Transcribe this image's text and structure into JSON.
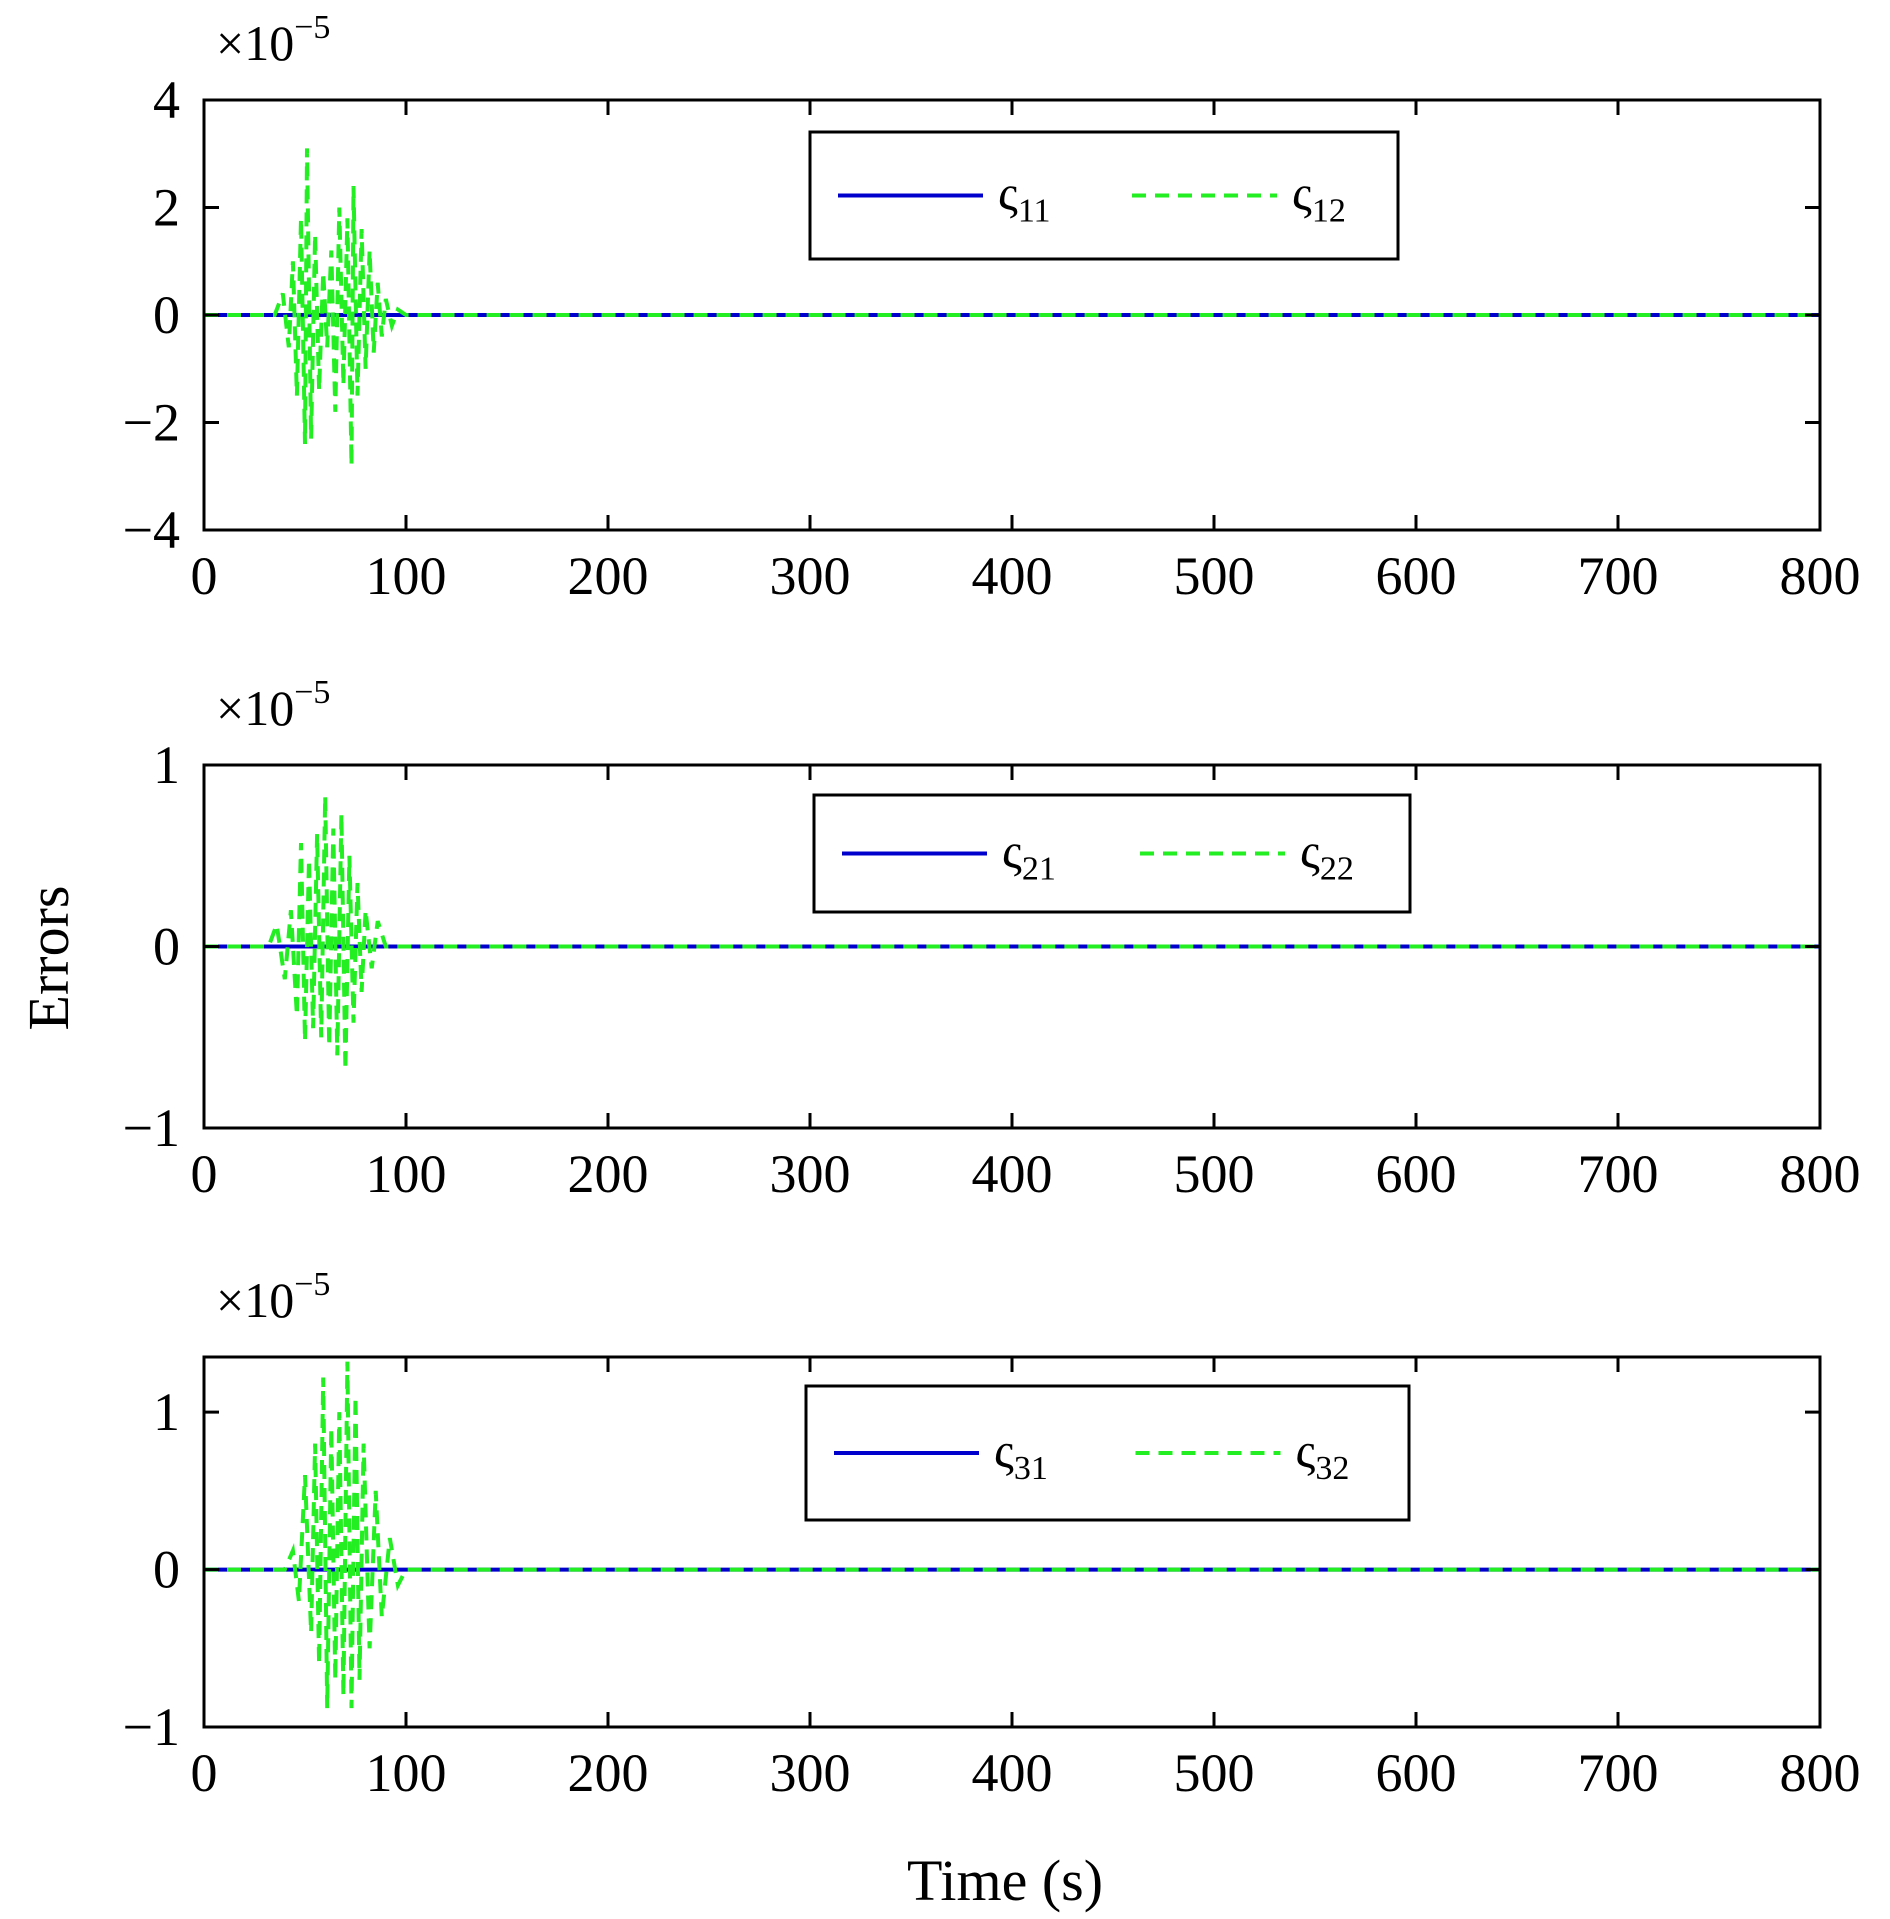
{
  "chart_data": {
    "type": "line",
    "shared": {
      "xlabel": "Time (s)",
      "ylabel": "Errors",
      "xlim": [
        0,
        800
      ],
      "xticks": [
        0,
        100,
        200,
        300,
        400,
        500,
        600,
        700,
        800
      ],
      "xtick_labels": [
        "0",
        "100",
        "200",
        "300",
        "400",
        "500",
        "600",
        "700",
        "800"
      ]
    },
    "panels": [
      {
        "multiplier_base": "×10",
        "multiplier_exp": "−5",
        "ylim": [
          -4,
          4
        ],
        "yticks": [
          -4,
          -2,
          0,
          2,
          4
        ],
        "ytick_labels": [
          "−4",
          "−2",
          "0",
          "2",
          "4"
        ],
        "legend_location": "top-center",
        "series": [
          {
            "name": "ς11",
            "symbol": "ς",
            "subscript": "11",
            "color": "#0000cc",
            "style": "solid",
            "amplitude": 0.6,
            "x": [
              0,
              35,
              43,
              50,
              55,
              60,
              65,
              70,
              75,
              80,
              85,
              92,
              100,
              800
            ],
            "y": [
              0,
              0,
              0,
              0,
              0,
              0,
              0,
              0,
              0,
              0,
              0,
              0,
              0,
              0
            ]
          },
          {
            "name": "ς12",
            "symbol": "ς",
            "subscript": "12",
            "color": "#22ee22",
            "style": "dashed",
            "x": [
              0,
              35,
              39,
              42,
              44,
              46,
              48,
              50,
              51,
              53,
              55,
              57,
              59,
              61,
              63,
              65,
              67,
              69,
              71,
              73,
              74,
              76,
              78,
              80,
              82,
              84,
              86,
              88,
              90,
              93,
              96,
              100,
              105,
              800
            ],
            "y": [
              0,
              0,
              0.4,
              -0.6,
              1.0,
              -1.5,
              1.8,
              -2.4,
              3.1,
              -2.3,
              1.5,
              -1.4,
              0.8,
              -0.6,
              1.2,
              -1.8,
              2.0,
              -1.3,
              1.8,
              -2.8,
              2.4,
              -1.5,
              1.6,
              -1.0,
              1.2,
              -0.7,
              0.6,
              -0.4,
              0.3,
              -0.2,
              0.1,
              0,
              0,
              0
            ]
          }
        ]
      },
      {
        "multiplier_base": "×10",
        "multiplier_exp": "−5",
        "ylim": [
          -1,
          1
        ],
        "yticks": [
          -1,
          0,
          1
        ],
        "ytick_labels": [
          "−1",
          "0",
          "1"
        ],
        "legend_location": "top-center",
        "series": [
          {
            "name": "ς21",
            "symbol": "ς",
            "subscript": "21",
            "color": "#0000cc",
            "style": "solid",
            "amplitude": 0.02,
            "x": [
              0,
              35,
              40,
              50,
              60,
              70,
              80,
              90,
              100,
              800
            ],
            "y": [
              0,
              0,
              0,
              0,
              0,
              0,
              0,
              0,
              0,
              0
            ]
          },
          {
            "name": "ς22",
            "symbol": "ς",
            "subscript": "22",
            "color": "#22ee22",
            "style": "dashed",
            "x": [
              0,
              32,
              36,
              40,
              43,
              46,
              48,
              50,
              52,
              54,
              56,
              58,
              60,
              62,
              64,
              66,
              68,
              70,
              72,
              74,
              76,
              78,
              80,
              83,
              86,
              90,
              800
            ],
            "y": [
              0,
              0,
              0.12,
              -0.18,
              0.2,
              -0.38,
              0.57,
              -0.52,
              0.48,
              -0.45,
              0.62,
              -0.5,
              0.83,
              -0.55,
              0.65,
              -0.6,
              0.73,
              -0.68,
              0.5,
              -0.42,
              0.35,
              -0.25,
              0.2,
              -0.12,
              0.14,
              0,
              0
            ]
          }
        ]
      },
      {
        "multiplier_base": "×10",
        "multiplier_exp": "−5",
        "ylim": [
          -1,
          1.35
        ],
        "yticks": [
          -1,
          0,
          1
        ],
        "ytick_labels": [
          "−1",
          "0",
          "1"
        ],
        "legend_location": "top-center",
        "series": [
          {
            "name": "ς31",
            "symbol": "ς",
            "subscript": "31",
            "color": "#0000cc",
            "style": "solid",
            "amplitude": 0.02,
            "x": [
              0,
              40,
              50,
              60,
              70,
              80,
              90,
              100,
              800
            ],
            "y": [
              0,
              0,
              0,
              0,
              0,
              0,
              0,
              0,
              0
            ]
          },
          {
            "name": "ς32",
            "symbol": "ς",
            "subscript": "32",
            "color": "#22ee22",
            "style": "dashed",
            "x": [
              0,
              40,
              44,
              47,
              50,
              53,
              55,
              57,
              59,
              61,
              63,
              65,
              67,
              69,
              71,
              73,
              75,
              77,
              79,
              82,
              85,
              88,
              92,
              96,
              100,
              800
            ],
            "y": [
              0,
              0,
              0.12,
              -0.2,
              0.6,
              -0.4,
              0.8,
              -0.6,
              1.22,
              -0.88,
              0.9,
              -0.7,
              1.0,
              -0.8,
              1.32,
              -0.88,
              1.1,
              -0.7,
              0.8,
              -0.5,
              0.5,
              -0.3,
              0.2,
              -0.1,
              0,
              0
            ]
          }
        ]
      }
    ]
  }
}
